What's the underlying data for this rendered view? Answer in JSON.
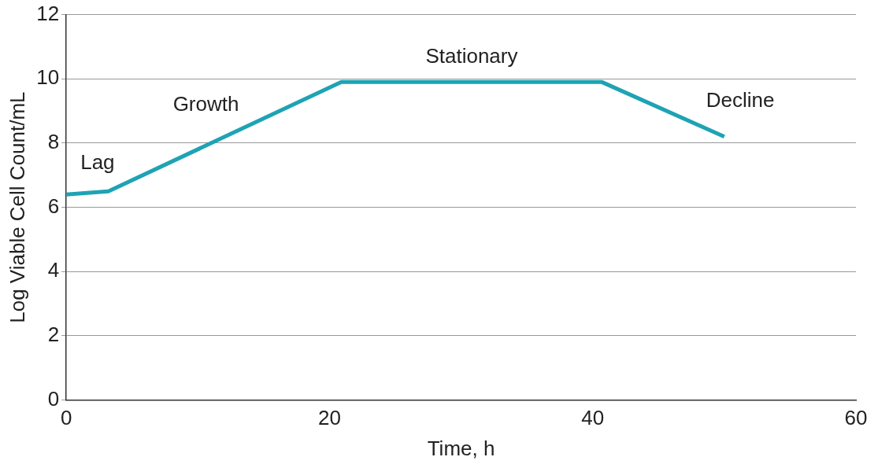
{
  "chart_data": {
    "type": "line",
    "xlabel": "Time, h",
    "ylabel": "Log Viable Cell Count/mL",
    "x": [
      0,
      3.2,
      20.9,
      40.7,
      50
    ],
    "series": [
      {
        "color": "#1ea3b4",
        "values": [
          6.4,
          6.5,
          9.9,
          9.9,
          8.2
        ]
      }
    ],
    "xlim": [
      0,
      60
    ],
    "xticks": [
      0,
      20,
      40,
      60
    ],
    "ylim": [
      0,
      12
    ],
    "yticks": [
      0,
      2,
      4,
      6,
      8,
      10,
      12
    ],
    "grid": "y",
    "legend": false,
    "marker": "none",
    "line_style": "solid",
    "annotations": [
      "Lag",
      "Growth",
      "Stationary",
      "Decline"
    ]
  }
}
